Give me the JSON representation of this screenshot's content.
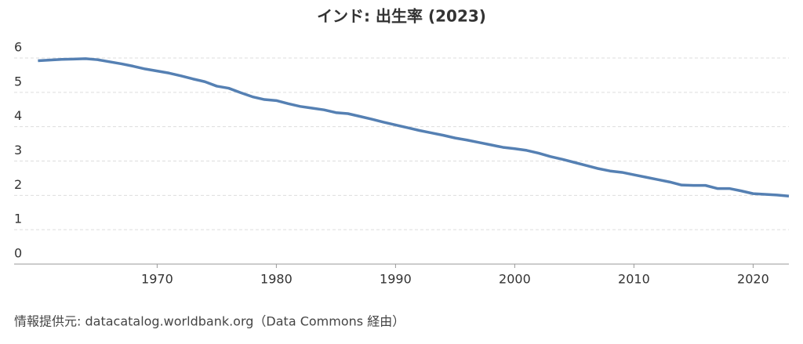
{
  "chart_data": {
    "type": "line",
    "title": "インド: 出生率 (2023)",
    "source": "情報提供元: datacatalog.worldbank.org（Data Commons 経由）",
    "x": [
      1960,
      1961,
      1962,
      1963,
      1964,
      1965,
      1966,
      1967,
      1968,
      1969,
      1970,
      1971,
      1972,
      1973,
      1974,
      1975,
      1976,
      1977,
      1978,
      1979,
      1980,
      1981,
      1982,
      1983,
      1984,
      1985,
      1986,
      1987,
      1988,
      1989,
      1990,
      1991,
      1992,
      1993,
      1994,
      1995,
      1996,
      1997,
      1998,
      1999,
      2000,
      2001,
      2002,
      2003,
      2004,
      2005,
      2006,
      2007,
      2008,
      2009,
      2010,
      2011,
      2012,
      2013,
      2014,
      2015,
      2016,
      2017,
      2018,
      2019,
      2020,
      2021,
      2022,
      2023
    ],
    "series": [
      {
        "name": "インド",
        "color": "#5580b3",
        "values": [
          5.92,
          5.94,
          5.96,
          5.97,
          5.98,
          5.95,
          5.89,
          5.83,
          5.76,
          5.68,
          5.62,
          5.56,
          5.48,
          5.39,
          5.31,
          5.18,
          5.12,
          4.99,
          4.87,
          4.79,
          4.76,
          4.67,
          4.59,
          4.54,
          4.49,
          4.41,
          4.38,
          4.3,
          4.22,
          4.13,
          4.05,
          3.97,
          3.89,
          3.82,
          3.75,
          3.67,
          3.61,
          3.54,
          3.47,
          3.4,
          3.36,
          3.31,
          3.23,
          3.13,
          3.05,
          2.96,
          2.87,
          2.78,
          2.71,
          2.67,
          2.6,
          2.53,
          2.46,
          2.39,
          2.3,
          2.29,
          2.29,
          2.2,
          2.2,
          2.13,
          2.05,
          2.03,
          2.01,
          1.98
        ]
      }
    ],
    "xlim": [
      1958,
      2023
    ],
    "xticks": [
      1970,
      1980,
      1990,
      2000,
      2010,
      2020
    ],
    "ylim": [
      0,
      6
    ],
    "yticks": [
      0,
      1,
      2,
      3,
      4,
      5,
      6
    ],
    "grid": true
  }
}
